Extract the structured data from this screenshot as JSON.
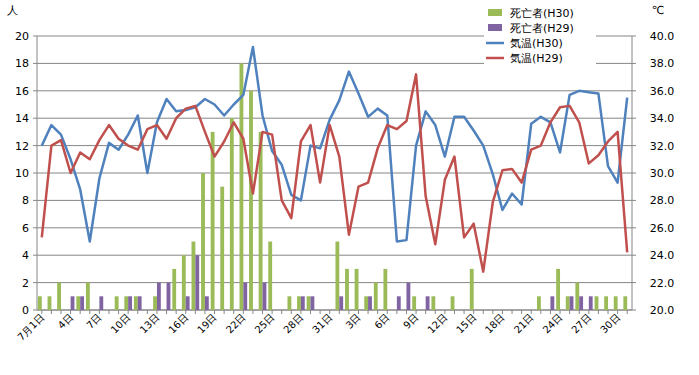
{
  "chart_data": {
    "type": "bar",
    "y_label": "人",
    "y2_label": "℃",
    "categories": [
      "7月1日",
      null,
      null,
      "4日",
      null,
      null,
      "7日",
      null,
      null,
      "10日",
      null,
      null,
      "13日",
      null,
      null,
      "16日",
      null,
      null,
      "19日",
      null,
      null,
      "22日",
      null,
      null,
      "25日",
      null,
      null,
      "28日",
      null,
      null,
      "31日",
      null,
      null,
      "3日",
      null,
      null,
      "6日",
      null,
      null,
      "9日",
      null,
      null,
      "12日",
      null,
      null,
      "15日",
      null,
      null,
      "18日",
      null,
      null,
      "21日",
      null,
      null,
      "24日",
      null,
      null,
      "27日",
      null,
      null,
      "30日",
      null
    ],
    "series": [
      {
        "name": "死亡者(H30)",
        "type": "bar",
        "color": "#9bbb59",
        "values": [
          1,
          1,
          2,
          0,
          1,
          2,
          0,
          0,
          1,
          1,
          1,
          0,
          1,
          0,
          3,
          4,
          5,
          10,
          13,
          9,
          14,
          18,
          16,
          13,
          5,
          0,
          1,
          1,
          1,
          0,
          0,
          5,
          3,
          3,
          1,
          2,
          3,
          0,
          0,
          1,
          0,
          1,
          0,
          1,
          0,
          3,
          0,
          0,
          0,
          0,
          0,
          0,
          1,
          0,
          3,
          1,
          2,
          0,
          1,
          1,
          1,
          1
        ]
      },
      {
        "name": "死亡者(H29)",
        "type": "bar",
        "color": "#8064a2",
        "values": [
          0,
          0,
          0,
          1,
          1,
          0,
          1,
          0,
          0,
          1,
          1,
          0,
          2,
          2,
          0,
          1,
          4,
          1,
          0,
          0,
          0,
          2,
          0,
          2,
          0,
          0,
          0,
          1,
          1,
          0,
          0,
          1,
          0,
          0,
          1,
          0,
          0,
          1,
          2,
          0,
          1,
          0,
          0,
          0,
          0,
          0,
          0,
          0,
          0,
          0,
          0,
          0,
          0,
          1,
          0,
          1,
          1,
          1,
          0,
          0,
          0,
          0
        ]
      },
      {
        "name": "気温(H30)",
        "type": "line",
        "axis": "y2",
        "color": "#4f81bd",
        "values": [
          32.0,
          33.5,
          32.8,
          31.0,
          28.8,
          25.0,
          29.6,
          32.2,
          31.7,
          32.8,
          34.2,
          30.0,
          33.7,
          35.4,
          34.5,
          34.6,
          34.8,
          35.4,
          35.0,
          34.2,
          35.0,
          35.7,
          39.2,
          34.2,
          31.6,
          30.6,
          28.4,
          28.0,
          32.0,
          31.8,
          33.9,
          35.3,
          37.4,
          35.8,
          34.1,
          34.7,
          34.2,
          25.0,
          25.1,
          32.0,
          34.5,
          33.5,
          31.2,
          34.1,
          34.1,
          33.1,
          32.0,
          29.9,
          27.3,
          28.5,
          27.7,
          33.6,
          34.1,
          33.7,
          31.5,
          35.7,
          36.0,
          35.9,
          35.8,
          30.5,
          29.3,
          35.5
        ]
      },
      {
        "name": "気温(H29)",
        "type": "line",
        "axis": "y2",
        "color": "#c0504d",
        "values": [
          25.3,
          32.0,
          32.4,
          30.0,
          31.5,
          31.0,
          32.4,
          33.5,
          32.5,
          32.0,
          31.7,
          33.2,
          33.5,
          32.5,
          34.0,
          34.7,
          34.9,
          33.0,
          31.2,
          32.3,
          33.7,
          32.5,
          28.5,
          33.0,
          32.8,
          28.0,
          26.7,
          32.3,
          33.5,
          29.3,
          33.5,
          31.2,
          25.5,
          29.0,
          29.3,
          31.8,
          33.5,
          33.2,
          33.8,
          37.2,
          28.3,
          24.8,
          29.5,
          31.2,
          25.3,
          26.3,
          22.8,
          27.9,
          30.2,
          30.3,
          29.3,
          31.7,
          32.0,
          33.7,
          34.8,
          34.9,
          33.7,
          30.7,
          31.3,
          32.3,
          33.0,
          24.2
        ]
      }
    ],
    "ylim": [
      0,
      20
    ],
    "yticks": [
      0,
      2,
      4,
      6,
      8,
      10,
      12,
      14,
      16,
      18,
      20
    ],
    "y2lim": [
      20,
      40
    ],
    "y2ticks": [
      {
        "value": 20,
        "label": "20.0"
      },
      {
        "value": 22,
        "label": "22.0"
      },
      {
        "value": 24,
        "label": "24.0"
      },
      {
        "value": 26,
        "label": "26.0"
      },
      {
        "value": 28,
        "label": "28.0"
      },
      {
        "value": 30,
        "label": "30.0"
      },
      {
        "value": 32,
        "label": "32.0"
      },
      {
        "value": 34,
        "label": "34.0"
      },
      {
        "value": 36,
        "label": "36.0"
      },
      {
        "value": 38,
        "label": "38.0"
      },
      {
        "value": 40,
        "label": "40.0"
      }
    ],
    "grid": true,
    "legend": "top-right"
  }
}
